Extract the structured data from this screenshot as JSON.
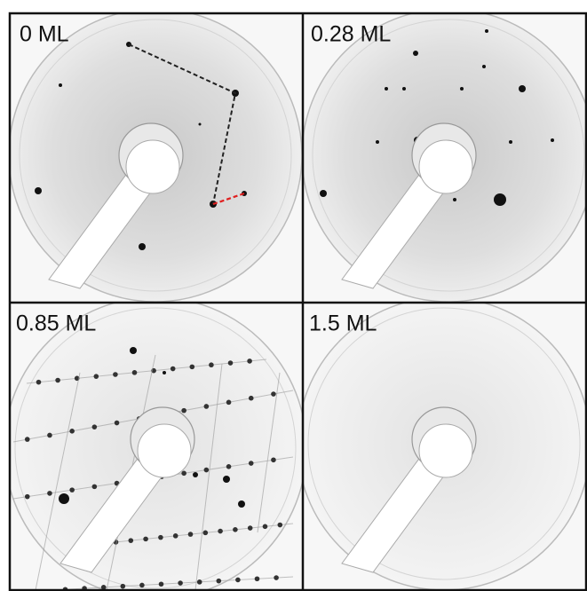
{
  "panels": [
    {
      "label": "0 ML"
    },
    {
      "label": "0.28 ML"
    },
    {
      "label": "0.85 ML"
    },
    {
      "label": "1.5 ML"
    }
  ]
}
